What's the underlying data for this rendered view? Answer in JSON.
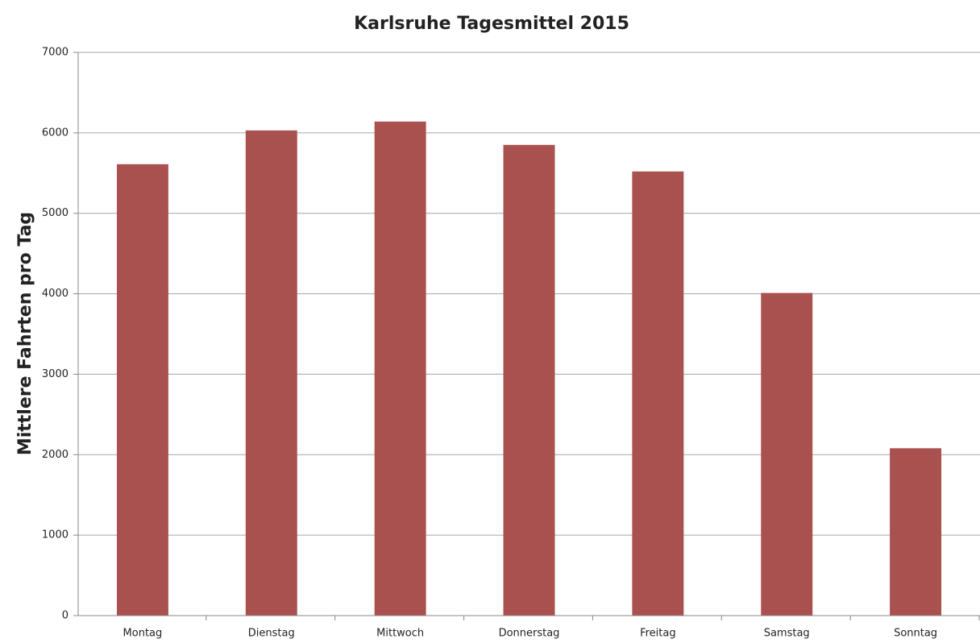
{
  "chart_data": {
    "type": "bar",
    "title": "Karlsruhe Tagesmittel 2015",
    "y_label": "Mittlere Fahrten pro Tag",
    "categories": [
      "Montag",
      "Dienstag",
      "Mittwoch",
      "Donnerstag",
      "Freitag",
      "Samstag",
      "Sonntag"
    ],
    "values": [
      5610,
      6030,
      6140,
      5850,
      5520,
      4010,
      2080
    ],
    "color": "#a9514f",
    "ylim": [
      0,
      7000
    ],
    "yticks": [
      0,
      1000,
      2000,
      3000,
      4000,
      5000,
      6000,
      7000
    ],
    "grid": true
  }
}
